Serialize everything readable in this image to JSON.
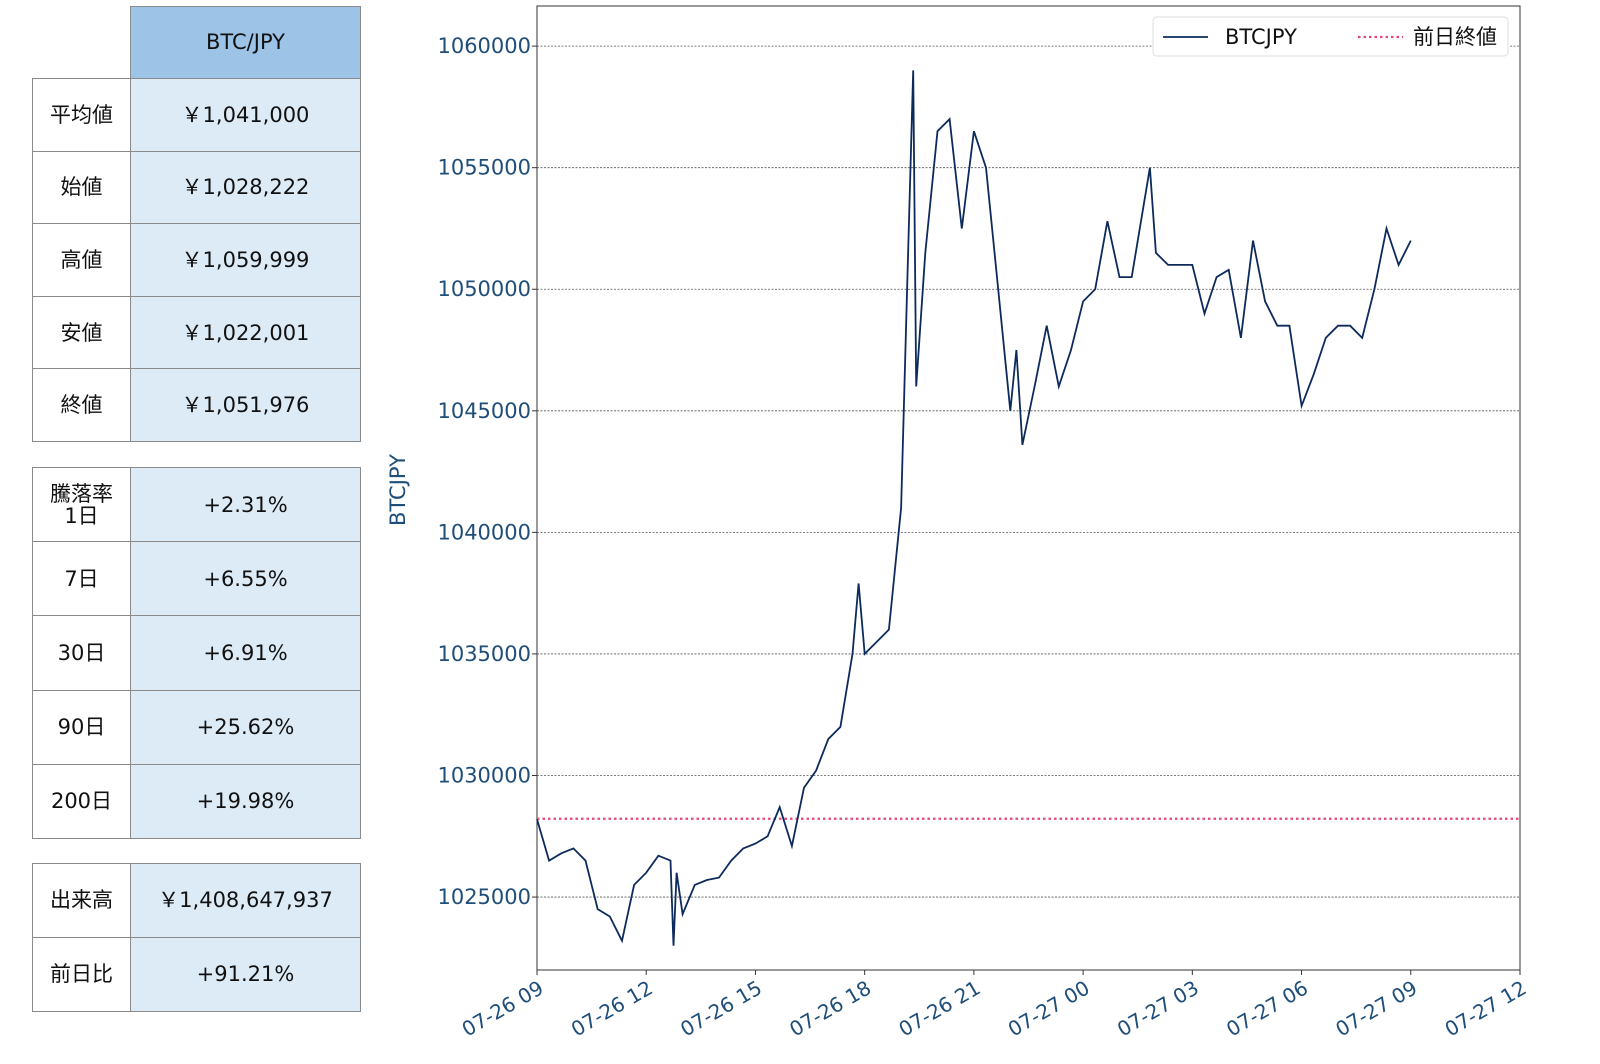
{
  "tables": [
    {
      "header": "BTC/JPY",
      "rows": [
        [
          "平均値",
          "￥1,041,000"
        ],
        [
          "始値",
          "￥1,028,222"
        ],
        [
          "高値",
          "￥1,059,999"
        ],
        [
          "安値",
          "￥1,022,001"
        ],
        [
          "終値",
          "￥1,051,976"
        ]
      ]
    },
    {
      "rows": [
        [
          "騰落率\n1日",
          "+2.31%"
        ],
        [
          "7日",
          "+6.55%"
        ],
        [
          "30日",
          "+6.91%"
        ],
        [
          "90日",
          "+25.62%"
        ],
        [
          "200日",
          "+19.98%"
        ]
      ]
    },
    {
      "rows": [
        [
          "出来高",
          "￥1,408,647,937"
        ],
        [
          "前日比",
          "+91.21%"
        ]
      ]
    }
  ],
  "chart_data": {
    "type": "line",
    "y_label": "BTCJPY",
    "xlim": [
      "07-26 09",
      "07-27 12"
    ],
    "xticks": [
      "07-26 09",
      "07-26 12",
      "07-26 15",
      "07-26 18",
      "07-26 21",
      "07-27 00",
      "07-27 03",
      "07-27 06",
      "07-27 09",
      "07-27 12"
    ],
    "ylim": [
      1022000,
      1061650
    ],
    "yticks": [
      1025000,
      1030000,
      1035000,
      1040000,
      1045000,
      1050000,
      1055000,
      1060000
    ],
    "grid": true,
    "legend": "upper right",
    "x": [
      "07-26 09:00",
      "07-26 09:20",
      "07-26 09:40",
      "07-26 10:00",
      "07-26 10:20",
      "07-26 10:40",
      "07-26 11:00",
      "07-26 11:20",
      "07-26 11:40",
      "07-26 12:00",
      "07-26 12:20",
      "07-26 12:40",
      "07-26 12:45",
      "07-26 12:50",
      "07-26 13:00",
      "07-26 13:20",
      "07-26 13:40",
      "07-26 14:00",
      "07-26 14:20",
      "07-26 14:40",
      "07-26 15:00",
      "07-26 15:20",
      "07-26 15:40",
      "07-26 16:00",
      "07-26 16:20",
      "07-26 16:40",
      "07-26 17:00",
      "07-26 17:20",
      "07-26 17:40",
      "07-26 17:50",
      "07-26 18:00",
      "07-26 18:20",
      "07-26 18:40",
      "07-26 19:00",
      "07-26 19:10",
      "07-26 19:20",
      "07-26 19:25",
      "07-26 19:40",
      "07-26 20:00",
      "07-26 20:20",
      "07-26 20:40",
      "07-26 21:00",
      "07-26 21:20",
      "07-26 21:40",
      "07-26 22:00",
      "07-26 22:10",
      "07-26 22:20",
      "07-26 22:40",
      "07-26 23:00",
      "07-26 23:20",
      "07-26 23:40",
      "07-27 00:00",
      "07-27 00:20",
      "07-27 00:40",
      "07-27 01:00",
      "07-27 01:20",
      "07-27 01:50",
      "07-27 02:00",
      "07-27 02:20",
      "07-27 02:40",
      "07-27 03:00",
      "07-27 03:20",
      "07-27 03:40",
      "07-27 04:00",
      "07-27 04:20",
      "07-27 04:40",
      "07-27 05:00",
      "07-27 05:20",
      "07-27 05:40",
      "07-27 06:00",
      "07-27 06:20",
      "07-27 06:40",
      "07-27 07:00",
      "07-27 07:20",
      "07-27 07:40",
      "07-27 08:00",
      "07-27 08:20",
      "07-27 08:40",
      "07-27 09:00"
    ],
    "series": [
      {
        "name": "BTCJPY",
        "color": "#0d2a5c",
        "values": [
          1028200,
          1026500,
          1026800,
          1027000,
          1026500,
          1024500,
          1024200,
          1023200,
          1025500,
          1026000,
          1026700,
          1026500,
          1023000,
          1026000,
          1024300,
          1025500,
          1025700,
          1025800,
          1026500,
          1027000,
          1027200,
          1027500,
          1028700,
          1027100,
          1029500,
          1030200,
          1031500,
          1032000,
          1035000,
          1037900,
          1035000,
          1035500,
          1036000,
          1041000,
          1050000,
          1059000,
          1046000,
          1051500,
          1056500,
          1057000,
          1052500,
          1056500,
          1055000,
          1050000,
          1045000,
          1047500,
          1043600,
          1046000,
          1048500,
          1046000,
          1047500,
          1049500,
          1050000,
          1052800,
          1050500,
          1050500,
          1055000,
          1051500,
          1051000,
          1051000,
          1051000,
          1049000,
          1050500,
          1050800,
          1048000,
          1052000,
          1049500,
          1048500,
          1048500,
          1045200,
          1046500,
          1048000,
          1048500,
          1048500,
          1048000,
          1050000,
          1052500,
          1051000,
          1052000
        ]
      }
    ],
    "reference_line": {
      "name": "前日終値",
      "value": 1028222,
      "color": "#e8457a"
    }
  }
}
